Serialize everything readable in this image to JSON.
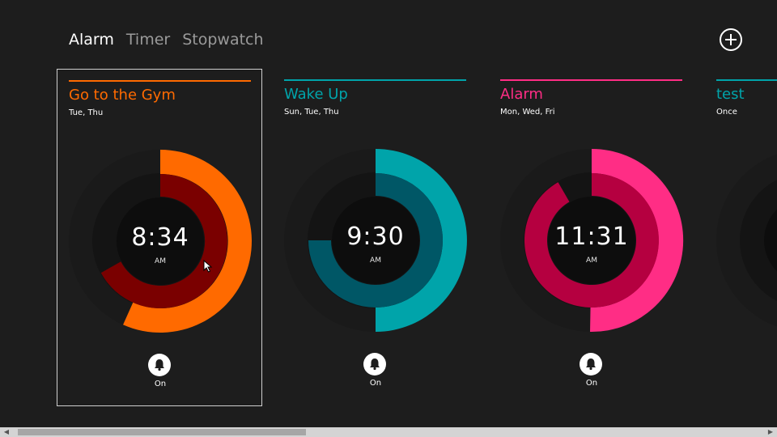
{
  "tabs": [
    {
      "label": "Alarm",
      "active": true
    },
    {
      "label": "Timer",
      "active": false
    },
    {
      "label": "Stopwatch",
      "active": false
    }
  ],
  "add_button_icon": "plus-circle-icon",
  "alarms": [
    {
      "title": "Go to the Gym",
      "days": "Tue, Thu",
      "time": "8:34",
      "ampm": "AM",
      "state": "On",
      "color": "#ff6a00",
      "inner_color": "#7a0000",
      "selected": true
    },
    {
      "title": "Wake Up",
      "days": "Sun, Tue, Thu",
      "time": "9:30",
      "ampm": "AM",
      "state": "On",
      "color": "#00a4aa",
      "inner_color": "#005766",
      "selected": false
    },
    {
      "title": "Alarm",
      "days": "Mon, Wed, Fri",
      "time": "11:31",
      "ampm": "AM",
      "state": "On",
      "color": "#ff2d85",
      "inner_color": "#b50040",
      "selected": false
    },
    {
      "title": "test",
      "days": "Once",
      "time": "",
      "ampm": "",
      "state": "",
      "color": "#00a4aa",
      "inner_color": "#005766",
      "selected": false
    }
  ],
  "bell_icon": "bell-icon",
  "scrollbar": {
    "left_arrow": "◀",
    "right_arrow": "▶"
  }
}
